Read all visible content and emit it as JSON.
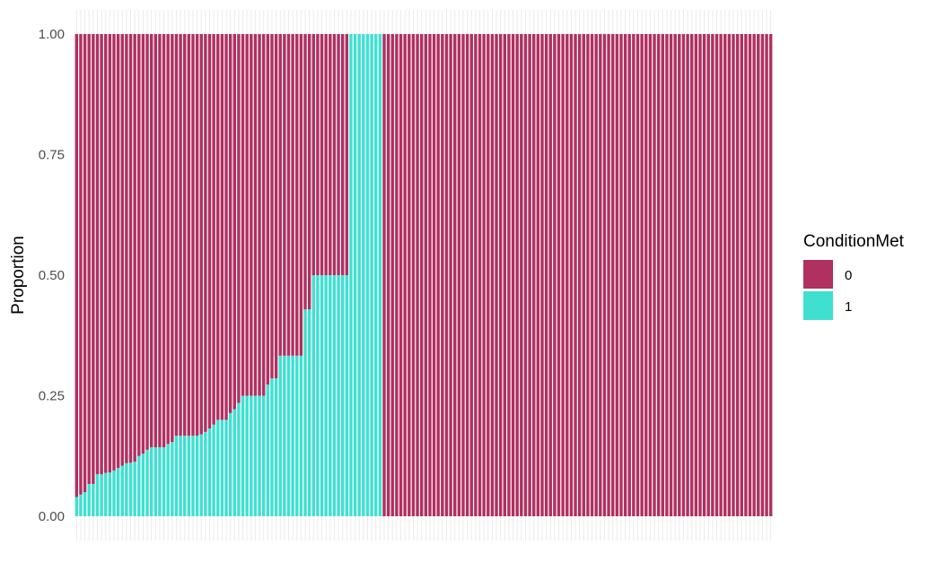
{
  "chart_data": {
    "type": "bar",
    "stacked": true,
    "ylabel": "Proportion",
    "xlabel": "",
    "ylim": [
      0,
      1
    ],
    "yticks": [
      0,
      0.25,
      0.5,
      0.75,
      1
    ],
    "ytick_labels": [
      "0.00",
      "0.25",
      "0.50",
      "0.75",
      "1.00"
    ],
    "grid": true,
    "legend": {
      "title": "ConditionMet",
      "position": "right",
      "entries": [
        {
          "label": "0",
          "color": "#b03060"
        },
        {
          "label": "1",
          "color": "#40e0d0"
        }
      ]
    },
    "series": [
      {
        "name": "0",
        "color": "#b03060"
      },
      {
        "name": "1",
        "color": "#40e0d0"
      }
    ],
    "proportion_1": [
      0.04,
      0.045,
      0.05,
      0.067,
      0.067,
      0.087,
      0.087,
      0.09,
      0.091,
      0.095,
      0.1,
      0.105,
      0.11,
      0.111,
      0.113,
      0.125,
      0.13,
      0.138,
      0.143,
      0.143,
      0.143,
      0.143,
      0.15,
      0.154,
      0.167,
      0.167,
      0.167,
      0.167,
      0.167,
      0.167,
      0.17,
      0.175,
      0.182,
      0.19,
      0.2,
      0.2,
      0.2,
      0.214,
      0.222,
      0.235,
      0.25,
      0.25,
      0.25,
      0.25,
      0.25,
      0.25,
      0.273,
      0.286,
      0.286,
      0.333,
      0.333,
      0.333,
      0.333,
      0.333,
      0.333,
      0.429,
      0.429,
      0.5,
      0.5,
      0.5,
      0.5,
      0.5,
      0.5,
      0.5,
      0.5,
      0.5,
      1,
      1,
      1,
      1,
      1,
      1,
      1,
      1,
      0,
      0,
      0,
      0,
      0,
      0,
      0,
      0,
      0,
      0,
      0,
      0,
      0,
      0,
      0,
      0,
      0,
      0,
      0,
      0,
      0,
      0,
      0,
      0,
      0,
      0,
      0,
      0,
      0,
      0,
      0,
      0,
      0,
      0,
      0,
      0,
      0,
      0,
      0,
      0,
      0,
      0,
      0,
      0,
      0,
      0,
      0,
      0,
      0,
      0,
      0,
      0,
      0,
      0,
      0,
      0,
      0,
      0,
      0,
      0,
      0,
      0,
      0,
      0,
      0,
      0,
      0,
      0,
      0,
      0,
      0,
      0,
      0,
      0,
      0,
      0,
      0,
      0,
      0,
      0,
      0,
      0,
      0,
      0,
      0,
      0,
      0,
      0,
      0,
      0,
      0,
      0,
      0,
      0
    ]
  }
}
